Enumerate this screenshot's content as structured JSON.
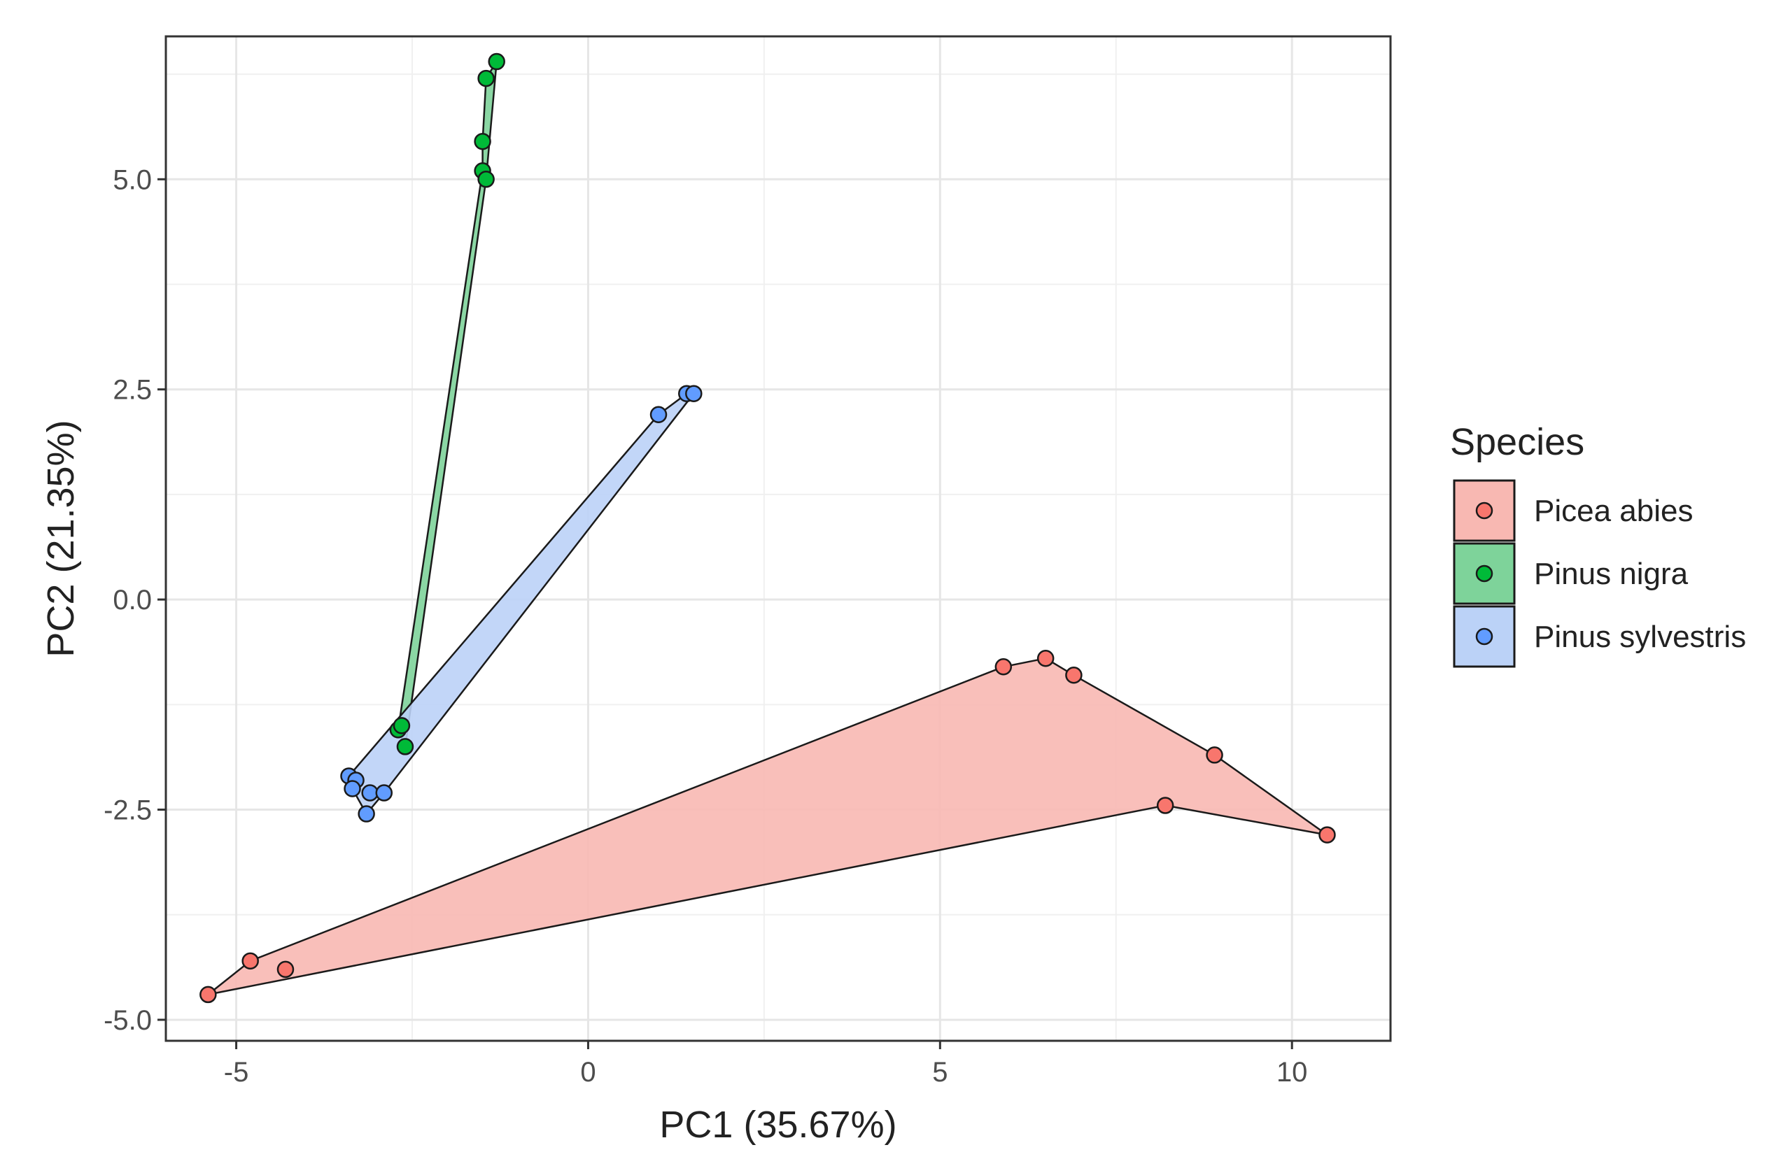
{
  "chart_data": {
    "type": "scatter",
    "title": "",
    "xlabel": "PC1 (35.67%)",
    "ylabel": "PC2 (21.35%)",
    "xlim": [
      -6.0,
      11.4
    ],
    "ylim": [
      -5.25,
      6.7
    ],
    "xticks": [
      -5,
      0,
      5,
      10
    ],
    "xtick_labels": [
      "-5",
      "0",
      "5",
      "10"
    ],
    "yticks": [
      -5,
      -2.5,
      0,
      2.5,
      5
    ],
    "ytick_labels": [
      "-5.0",
      "-2.5",
      "0.0",
      "2.5",
      "5.0"
    ],
    "grid": true,
    "legend_title": "Species",
    "legend_position": "right",
    "series": [
      {
        "name": "Picea abies",
        "color": "#F8766D",
        "fill": "#F8B8B2",
        "points": [
          {
            "x": -5.4,
            "y": -4.7
          },
          {
            "x": -4.8,
            "y": -4.3
          },
          {
            "x": -4.3,
            "y": -4.4
          },
          {
            "x": 5.9,
            "y": -0.8
          },
          {
            "x": 6.5,
            "y": -0.7
          },
          {
            "x": 6.9,
            "y": -0.9
          },
          {
            "x": 8.2,
            "y": -2.45
          },
          {
            "x": 8.9,
            "y": -1.85
          },
          {
            "x": 10.5,
            "y": -2.8
          }
        ],
        "hull": [
          {
            "x": -5.4,
            "y": -4.7
          },
          {
            "x": -4.8,
            "y": -4.3
          },
          {
            "x": 5.9,
            "y": -0.8
          },
          {
            "x": 6.5,
            "y": -0.7
          },
          {
            "x": 6.9,
            "y": -0.9
          },
          {
            "x": 8.9,
            "y": -1.85
          },
          {
            "x": 10.5,
            "y": -2.8
          },
          {
            "x": 8.2,
            "y": -2.45
          }
        ]
      },
      {
        "name": "Pinus nigra",
        "color": "#00BA38",
        "fill": "#7ED39A",
        "points": [
          {
            "x": -1.3,
            "y": 6.4
          },
          {
            "x": -1.45,
            "y": 6.2
          },
          {
            "x": -1.5,
            "y": 5.45
          },
          {
            "x": -1.5,
            "y": 5.1
          },
          {
            "x": -1.45,
            "y": 5.0
          },
          {
            "x": -2.7,
            "y": -1.55
          },
          {
            "x": -2.6,
            "y": -1.75
          },
          {
            "x": -2.65,
            "y": -1.5
          }
        ],
        "hull": [
          {
            "x": -2.7,
            "y": -1.55
          },
          {
            "x": -1.5,
            "y": 5.1
          },
          {
            "x": -1.5,
            "y": 5.45
          },
          {
            "x": -1.45,
            "y": 6.2
          },
          {
            "x": -1.3,
            "y": 6.4
          },
          {
            "x": -1.45,
            "y": 5.0
          },
          {
            "x": -2.6,
            "y": -1.75
          }
        ]
      },
      {
        "name": "Pinus sylvestris",
        "color": "#619CFF",
        "fill": "#BBD2F7",
        "points": [
          {
            "x": -3.4,
            "y": -2.1
          },
          {
            "x": -3.3,
            "y": -2.15
          },
          {
            "x": -3.35,
            "y": -2.25
          },
          {
            "x": -3.1,
            "y": -2.3
          },
          {
            "x": -2.9,
            "y": -2.3
          },
          {
            "x": -3.15,
            "y": -2.55
          },
          {
            "x": 1.0,
            "y": 2.2
          },
          {
            "x": 1.4,
            "y": 2.45
          },
          {
            "x": 1.5,
            "y": 2.45
          }
        ],
        "hull": [
          {
            "x": -3.4,
            "y": -2.1
          },
          {
            "x": 1.0,
            "y": 2.2
          },
          {
            "x": 1.4,
            "y": 2.45
          },
          {
            "x": 1.5,
            "y": 2.45
          },
          {
            "x": -2.9,
            "y": -2.3
          },
          {
            "x": -3.15,
            "y": -2.55
          },
          {
            "x": -3.35,
            "y": -2.25
          }
        ]
      }
    ]
  }
}
